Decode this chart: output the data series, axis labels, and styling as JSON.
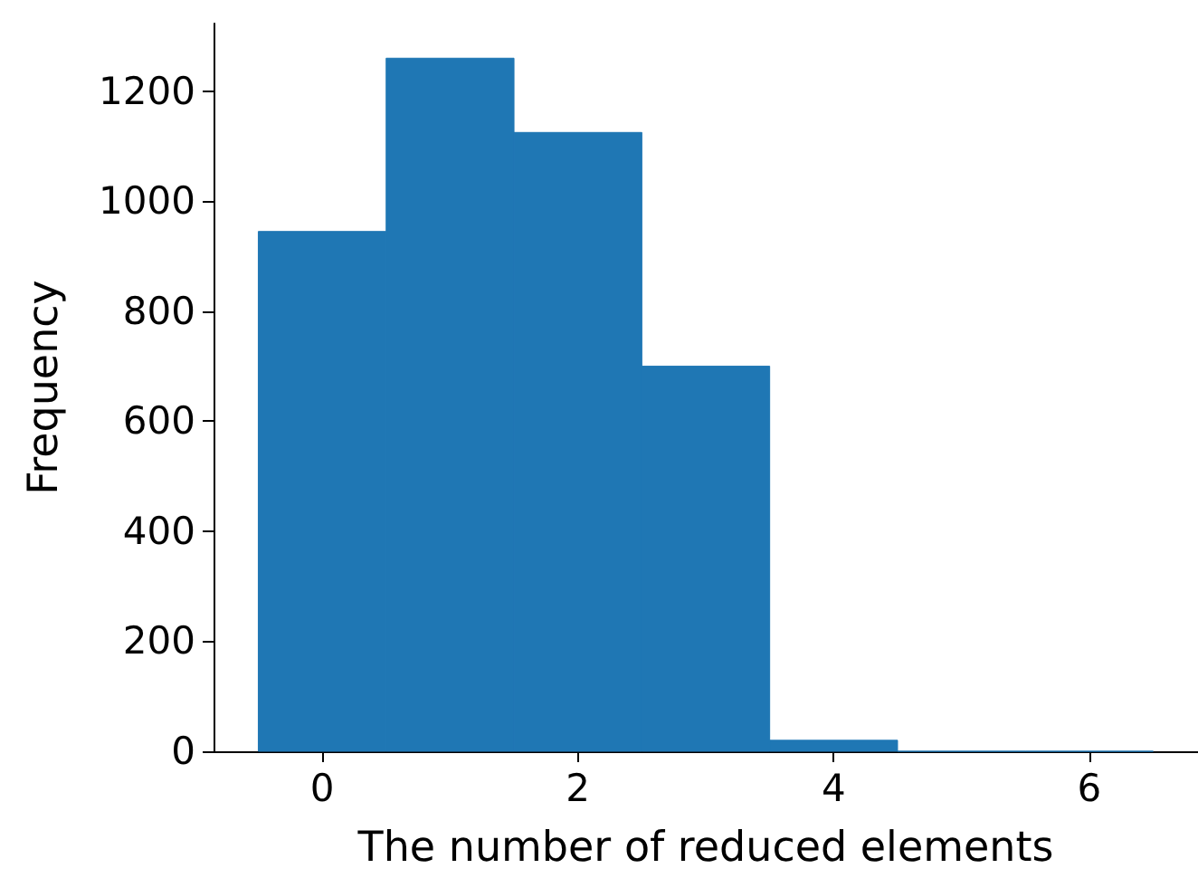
{
  "chart_data": {
    "type": "histogram",
    "xlabel": "The number of reduced elements",
    "ylabel": "Frequency",
    "bins": [
      -0.5,
      0.5,
      1.5,
      2.5,
      3.5,
      4.5,
      5.5,
      6.5
    ],
    "values": [
      945,
      1260,
      1125,
      700,
      20,
      0,
      0
    ],
    "color": "#1f77b4",
    "xlim": [
      -0.85,
      6.85
    ],
    "xticks": [
      0,
      2,
      4,
      6
    ],
    "ylim": [
      0,
      1323
    ],
    "yticks": [
      0,
      200,
      400,
      600,
      800,
      1000,
      1200
    ],
    "grid": false
  }
}
